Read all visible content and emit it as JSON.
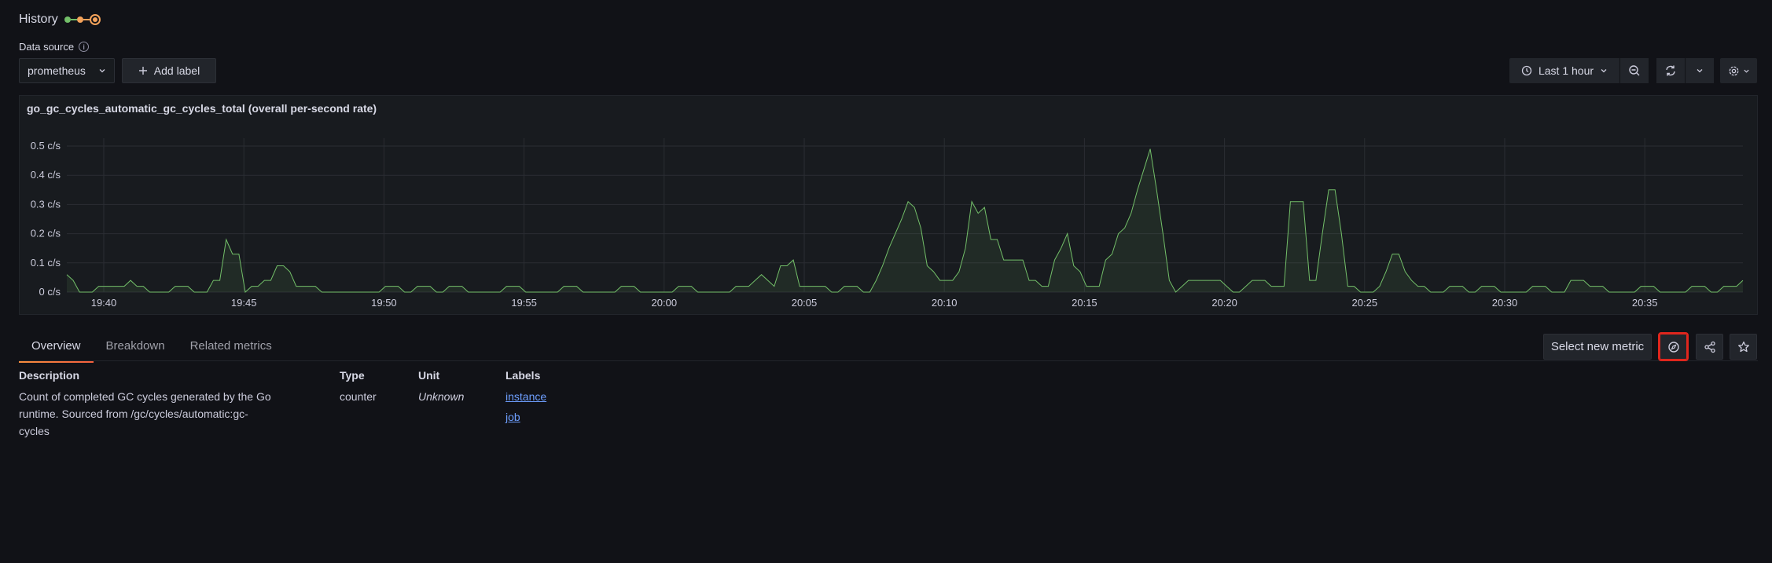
{
  "header": {
    "history_label": "History"
  },
  "datasource": {
    "label": "Data source",
    "value": "prometheus",
    "add_label": "Add label"
  },
  "time": {
    "range_label": "Last 1 hour"
  },
  "panel": {
    "title": "go_gc_cycles_automatic_gc_cycles_total (overall per-second rate)"
  },
  "chart_data": {
    "type": "area",
    "title": "go_gc_cycles_automatic_gc_cycles_total (overall per-second rate)",
    "ylim": [
      0,
      0.5
    ],
    "y_ticks": [
      "0 c/s",
      "0.1 c/s",
      "0.2 c/s",
      "0.3 c/s",
      "0.4 c/s",
      "0.5 c/s"
    ],
    "x_ticks": [
      "19:40",
      "19:45",
      "19:50",
      "19:55",
      "20:00",
      "20:05",
      "20:10",
      "20:15",
      "20:20",
      "20:25",
      "20:30",
      "20:35"
    ],
    "grid": true,
    "color": "#73bf69",
    "series": [
      {
        "values": [
          0.06,
          0.04,
          0.0,
          0.0,
          0.0,
          0.02,
          0.02,
          0.02,
          0.02,
          0.02,
          0.04,
          0.02,
          0.02,
          0.0,
          0.0,
          0.0,
          0.0,
          0.02,
          0.02,
          0.02,
          0.0,
          0.0,
          0.0,
          0.04,
          0.04,
          0.18,
          0.13,
          0.13,
          0.0,
          0.02,
          0.02,
          0.04,
          0.04,
          0.09,
          0.09,
          0.07,
          0.02,
          0.02,
          0.02,
          0.02,
          0.0,
          0.0,
          0.0,
          0.0,
          0.0,
          0.0,
          0.0,
          0.0,
          0.0,
          0.0,
          0.02,
          0.02,
          0.02,
          0.0,
          0.0,
          0.02,
          0.02,
          0.02,
          0.0,
          0.0,
          0.02,
          0.02,
          0.02,
          0.0,
          0.0,
          0.0,
          0.0,
          0.0,
          0.0,
          0.02,
          0.02,
          0.02,
          0.0,
          0.0,
          0.0,
          0.0,
          0.0,
          0.0,
          0.02,
          0.02,
          0.02,
          0.0,
          0.0,
          0.0,
          0.0,
          0.0,
          0.0,
          0.02,
          0.02,
          0.02,
          0.0,
          0.0,
          0.0,
          0.0,
          0.0,
          0.0,
          0.02,
          0.02,
          0.02,
          0.0,
          0.0,
          0.0,
          0.0,
          0.0,
          0.0,
          0.02,
          0.02,
          0.02,
          0.04,
          0.06,
          0.04,
          0.02,
          0.09,
          0.09,
          0.11,
          0.02,
          0.02,
          0.02,
          0.02,
          0.02,
          0.0,
          0.0,
          0.02,
          0.02,
          0.02,
          0.0,
          0.0,
          0.04,
          0.09,
          0.15,
          0.2,
          0.25,
          0.31,
          0.29,
          0.22,
          0.09,
          0.07,
          0.04,
          0.04,
          0.04,
          0.07,
          0.15,
          0.31,
          0.27,
          0.29,
          0.18,
          0.18,
          0.11,
          0.11,
          0.11,
          0.11,
          0.04,
          0.04,
          0.02,
          0.02,
          0.11,
          0.15,
          0.2,
          0.09,
          0.07,
          0.02,
          0.02,
          0.02,
          0.11,
          0.13,
          0.2,
          0.22,
          0.27,
          0.35,
          0.42,
          0.49,
          0.35,
          0.2,
          0.04,
          0.0,
          0.02,
          0.04,
          0.04,
          0.04,
          0.04,
          0.04,
          0.04,
          0.02,
          0.0,
          0.0,
          0.02,
          0.04,
          0.04,
          0.04,
          0.02,
          0.02,
          0.02,
          0.31,
          0.31,
          0.31,
          0.04,
          0.04,
          0.2,
          0.35,
          0.35,
          0.2,
          0.02,
          0.02,
          0.0,
          0.0,
          0.0,
          0.02,
          0.07,
          0.13,
          0.13,
          0.07,
          0.04,
          0.02,
          0.02,
          0.0,
          0.0,
          0.0,
          0.02,
          0.02,
          0.02,
          0.0,
          0.0,
          0.02,
          0.02,
          0.02,
          0.0,
          0.0,
          0.0,
          0.0,
          0.0,
          0.02,
          0.02,
          0.02,
          0.0,
          0.0,
          0.0,
          0.04,
          0.04,
          0.04,
          0.02,
          0.02,
          0.02,
          0.0,
          0.0,
          0.0,
          0.0,
          0.0,
          0.02,
          0.02,
          0.02,
          0.0,
          0.0,
          0.0,
          0.0,
          0.0,
          0.02,
          0.02,
          0.02,
          0.0,
          0.0,
          0.02,
          0.02,
          0.02,
          0.04
        ]
      }
    ]
  },
  "tabs": [
    "Overview",
    "Breakdown",
    "Related metrics"
  ],
  "actions": {
    "select_metric": "Select new metric"
  },
  "details": {
    "description_header": "Description",
    "description_lines": [
      "Count of completed GC cycles generated by the Go",
      "runtime. Sourced from /gc/cycles/automatic:gc-",
      "cycles"
    ],
    "type_header": "Type",
    "type_value": "counter",
    "unit_header": "Unit",
    "unit_value": "Unknown",
    "labels_header": "Labels",
    "labels": [
      "instance",
      "job"
    ]
  }
}
